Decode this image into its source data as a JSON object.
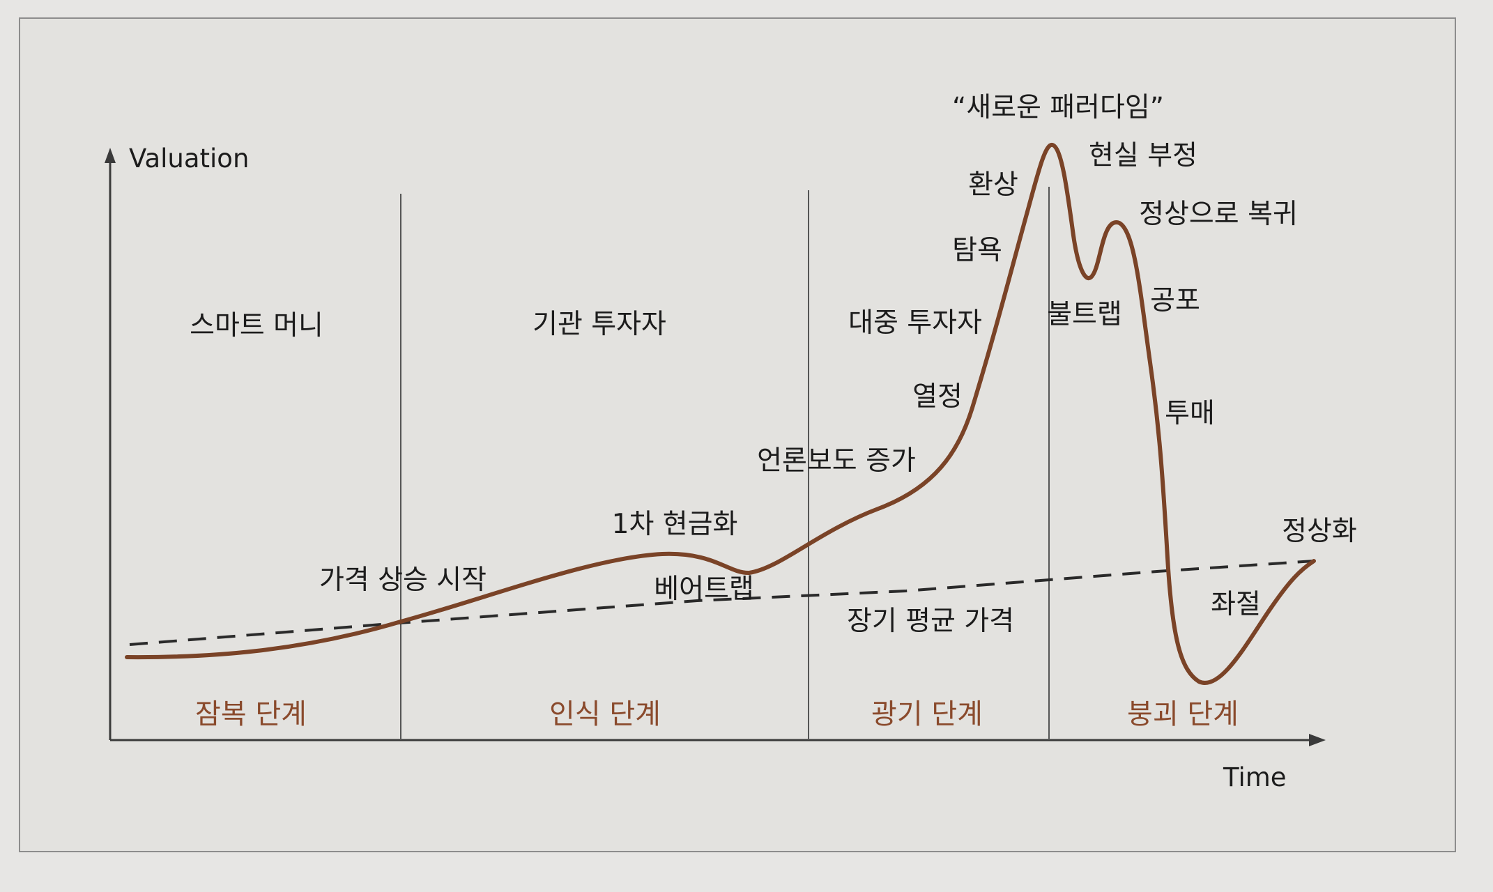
{
  "diagram": {
    "axis": {
      "y_label": "Valuation",
      "x_label": "Time"
    },
    "participants": [
      "스마트 머니",
      "기관 투자자",
      "대중 투자자"
    ],
    "stages": [
      "잠복 단계",
      "인식 단계",
      "광기 단계",
      "붕괴 단계"
    ],
    "curve_labels": {
      "price_rise_start": "가격 상승 시작",
      "first_sell_off": "1차 현금화",
      "bear_trap": "베어트랩",
      "media_attention": "언론보도 증가",
      "enthusiasm": "열정",
      "greed": "탐욕",
      "delusion": "환상",
      "new_paradigm": "“새로운 패러다임”",
      "denial": "현실 부정",
      "bull_trap": "불트랩",
      "return_to_normal": "정상으로 복귀",
      "fear": "공포",
      "capitulation": "투매",
      "despair": "좌절",
      "normalization": "정상화",
      "long_term_mean": "장기 평균 가격"
    },
    "colors": {
      "curve": "#7a4327",
      "stage_text": "#8a4a2c",
      "mean_line": "#2a2a2a",
      "frame": "#5a5a5a"
    }
  }
}
